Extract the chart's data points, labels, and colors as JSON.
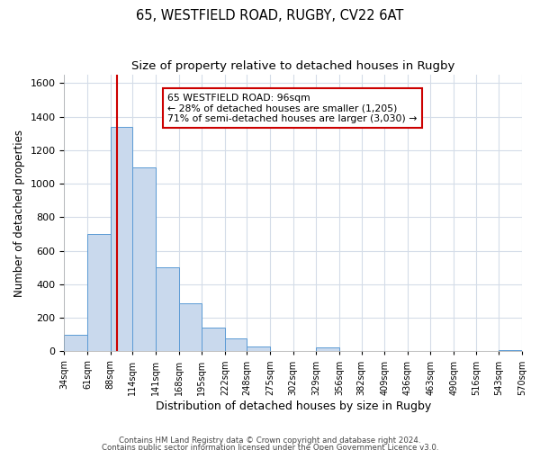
{
  "title1": "65, WESTFIELD ROAD, RUGBY, CV22 6AT",
  "title2": "Size of property relative to detached houses in Rugby",
  "xlabel": "Distribution of detached houses by size in Rugby",
  "ylabel": "Number of detached properties",
  "bin_edges": [
    34,
    61,
    88,
    114,
    141,
    168,
    195,
    222,
    248,
    275,
    302,
    329,
    356,
    382,
    409,
    436,
    463,
    490,
    516,
    543,
    570
  ],
  "bin_labels": [
    "34sqm",
    "61sqm",
    "88sqm",
    "114sqm",
    "141sqm",
    "168sqm",
    "195sqm",
    "222sqm",
    "248sqm",
    "275sqm",
    "302sqm",
    "329sqm",
    "356sqm",
    "382sqm",
    "409sqm",
    "436sqm",
    "463sqm",
    "490sqm",
    "516sqm",
    "543sqm",
    "570sqm"
  ],
  "bar_heights": [
    100,
    700,
    1340,
    1100,
    500,
    285,
    140,
    75,
    30,
    0,
    0,
    25,
    0,
    0,
    0,
    0,
    0,
    0,
    0,
    10
  ],
  "bar_color": "#c9d9ed",
  "bar_edge_color": "#5b9bd5",
  "property_line_x": 96,
  "property_line_color": "#cc0000",
  "ylim": [
    0,
    1650
  ],
  "yticks": [
    0,
    200,
    400,
    600,
    800,
    1000,
    1200,
    1400,
    1600
  ],
  "annotation_title": "65 WESTFIELD ROAD: 96sqm",
  "annotation_line1": "← 28% of detached houses are smaller (1,205)",
  "annotation_line2": "71% of semi-detached houses are larger (3,030) →",
  "annotation_box_color": "#ffffff",
  "annotation_box_edge": "#cc0000",
  "footer1": "Contains HM Land Registry data © Crown copyright and database right 2024.",
  "footer2": "Contains public sector information licensed under the Open Government Licence v3.0.",
  "bg_color": "#ffffff",
  "grid_color": "#d4dce8",
  "title1_fontsize": 10.5,
  "title2_fontsize": 9.5,
  "xlabel_fontsize": 9,
  "ylabel_fontsize": 8.5
}
